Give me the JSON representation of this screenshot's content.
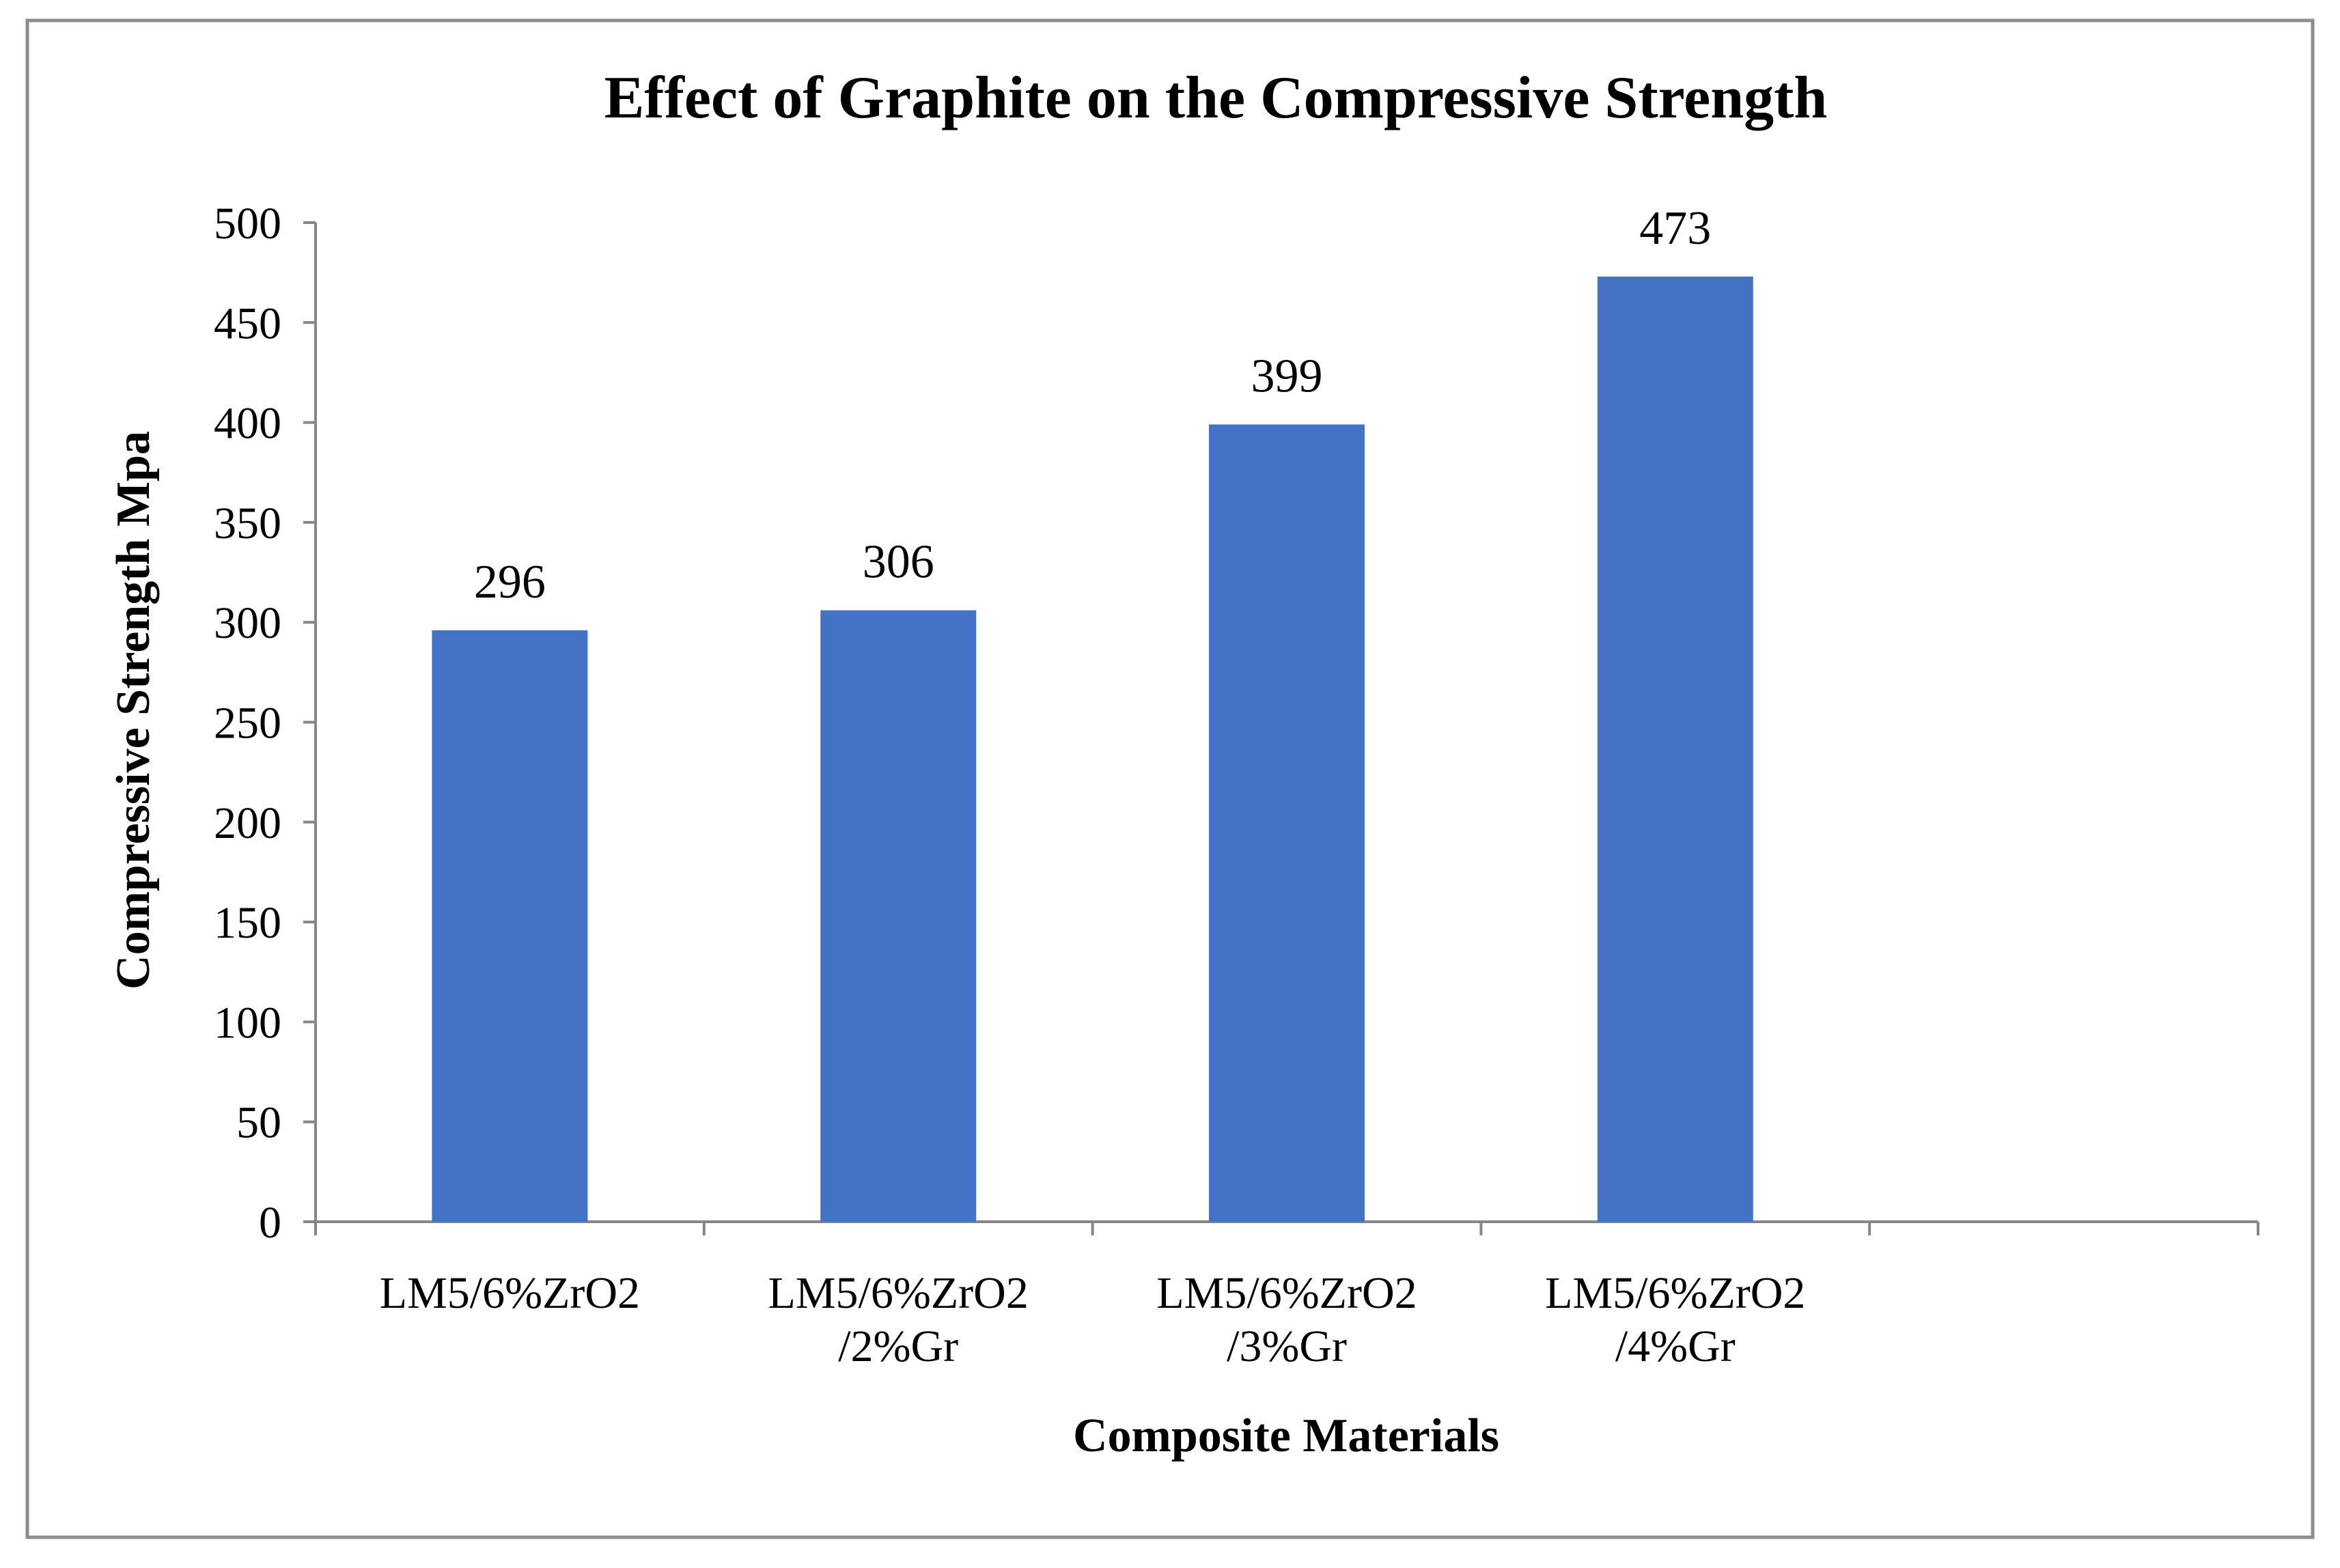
{
  "chart_data": {
    "type": "bar",
    "title": "Effect of Graphite on the Compressive Strength",
    "xlabel": "Composite Materials",
    "ylabel": "Compressive Strength Mpa",
    "categories": [
      [
        "LM5/6%ZrO2"
      ],
      [
        "LM5/6%ZrO2",
        "/2%Gr"
      ],
      [
        "LM5/6%ZrO2",
        "/3%Gr"
      ],
      [
        "LM5/6%ZrO2",
        "/4%Gr"
      ]
    ],
    "series": [
      {
        "name": "Compressive Strength",
        "values": [
          296,
          306,
          399,
          473
        ]
      }
    ],
    "data_labels": [
      "296",
      "306",
      "399",
      "473"
    ],
    "ylim": [
      0,
      500
    ],
    "yticks": [
      0,
      50,
      100,
      150,
      200,
      250,
      300,
      350,
      400,
      450,
      500
    ],
    "grid": false,
    "legend": "none",
    "bar_color": "#4472C4",
    "axis_color": "#868686",
    "border_color": "#8c8c8c"
  }
}
